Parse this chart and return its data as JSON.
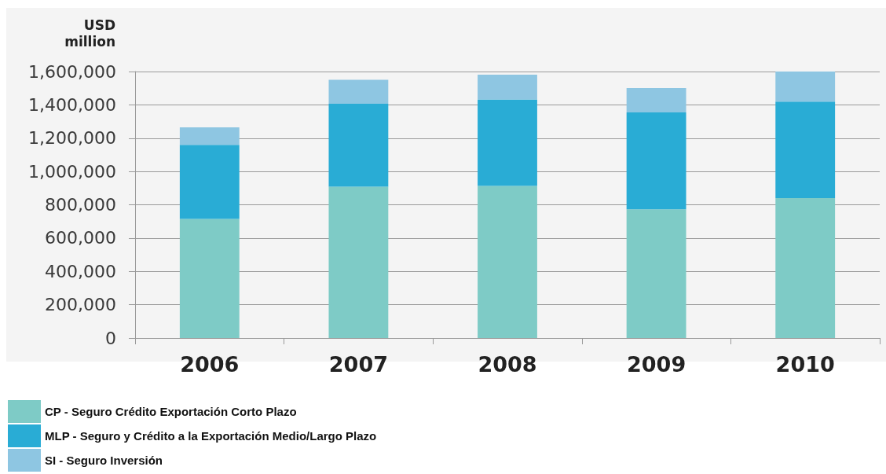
{
  "chart_data": {
    "type": "bar",
    "ylabel": "USD\nmillion",
    "categories": [
      "2006",
      "2007",
      "2008",
      "2009",
      "2010"
    ],
    "series": [
      {
        "name": "CP - Seguro Crédito Exportación Corto Plazo",
        "color": "#7ecbc6",
        "values": [
          715000,
          908000,
          913000,
          773000,
          840000
        ]
      },
      {
        "name": "MLP - Seguro y Crédito a la Exportación Medio/Largo Plazo",
        "color": "#29acd5",
        "values": [
          445000,
          498000,
          520000,
          581000,
          580000
        ]
      },
      {
        "name": "SI - Seguro Inversión",
        "color": "#8ec6e2",
        "values": [
          105000,
          145000,
          148000,
          147000,
          180000
        ]
      }
    ],
    "stacked": true,
    "ylim": [
      0,
      1600000
    ],
    "yticks": [
      0,
      {
        "value": 200000,
        "label": "200,000"
      },
      {
        "value": 400000,
        "label": "400,000"
      },
      {
        "value": 600000,
        "label": "600,000"
      },
      {
        "value": 800000,
        "label": "800,000"
      },
      {
        "value": 1000000,
        "label": "1,000,000"
      },
      {
        "value": 1200000,
        "label": "1,200,000"
      },
      {
        "value": 1400000,
        "label": "1,400,000"
      },
      {
        "value": 1600000,
        "label": "1,600,000"
      }
    ],
    "grid": "y",
    "legend": "bottom left"
  }
}
